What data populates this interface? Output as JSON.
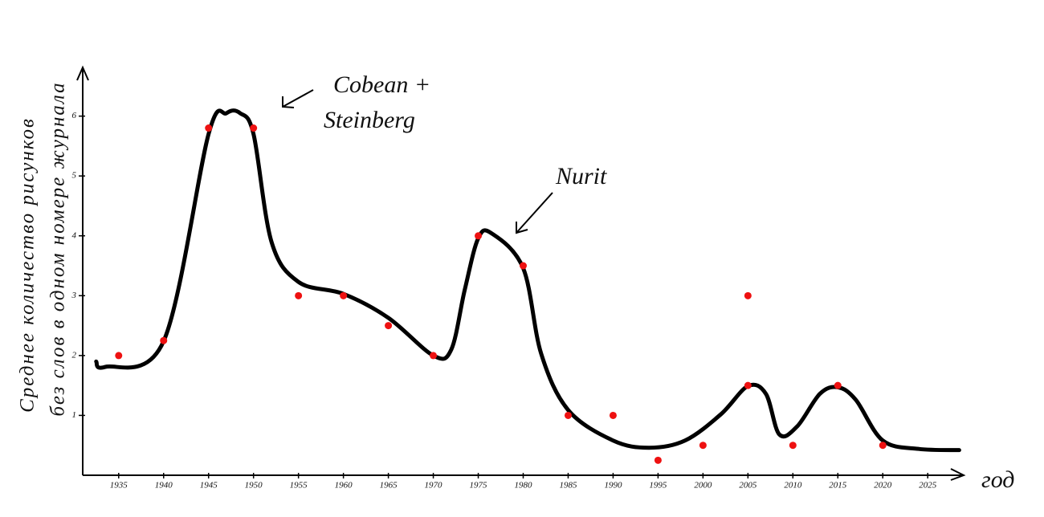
{
  "chart_data": {
    "type": "scatter",
    "ylabel": [
      "Среднее количество рисунков",
      "без слов в одном номере журнала"
    ],
    "xlabel": "год",
    "annotations": [
      "Cobean +",
      "Steinberg",
      "Nurit"
    ],
    "xlim": [
      1931,
      2029
    ],
    "ylim": [
      0,
      6.8
    ],
    "xticks": [
      1935,
      1940,
      1945,
      1950,
      1955,
      1960,
      1965,
      1970,
      1975,
      1980,
      1985,
      1990,
      1995,
      2000,
      2005,
      2010,
      2015,
      2020,
      2025
    ],
    "yticks": [
      1,
      2,
      3,
      4,
      5,
      6
    ],
    "series": [
      {
        "type": "line",
        "color": "#000000",
        "x": [
          1932.5,
          1933.5,
          1940,
          1945,
          1947,
          1948.5,
          1950,
          1952,
          1955,
          1960,
          1965,
          1970,
          1972,
          1973.5,
          1975,
          1976.5,
          1980,
          1982,
          1985,
          1990,
          1994,
          1998,
          2002,
          2005,
          2007,
          2008.5,
          2010.5,
          2013,
          2015,
          2017,
          2020,
          2024,
          2028.5
        ],
        "values": [
          1.9,
          1.81,
          2.24,
          5.7,
          6.05,
          6.05,
          5.7,
          3.9,
          3.23,
          3.03,
          2.63,
          2.0,
          2.1,
          3.1,
          3.96,
          4.04,
          3.46,
          2.03,
          1.09,
          0.58,
          0.46,
          0.58,
          1.02,
          1.49,
          1.36,
          0.68,
          0.82,
          1.36,
          1.47,
          1.26,
          0.58,
          0.44,
          0.42
        ]
      },
      {
        "type": "scatter",
        "color": "#ee1111",
        "x": [
          1935,
          1940,
          1945,
          1950,
          1955,
          1960,
          1965,
          1970,
          1975,
          1980,
          1985,
          1990,
          1995,
          2000,
          2005,
          2005,
          2010,
          2015,
          2020
        ],
        "values": [
          2.0,
          2.25,
          5.8,
          5.8,
          3.0,
          3.0,
          2.5,
          2.0,
          4.0,
          3.5,
          1.0,
          1.0,
          0.25,
          0.5,
          3.0,
          1.5,
          0.5,
          1.5,
          0.5
        ]
      }
    ]
  }
}
